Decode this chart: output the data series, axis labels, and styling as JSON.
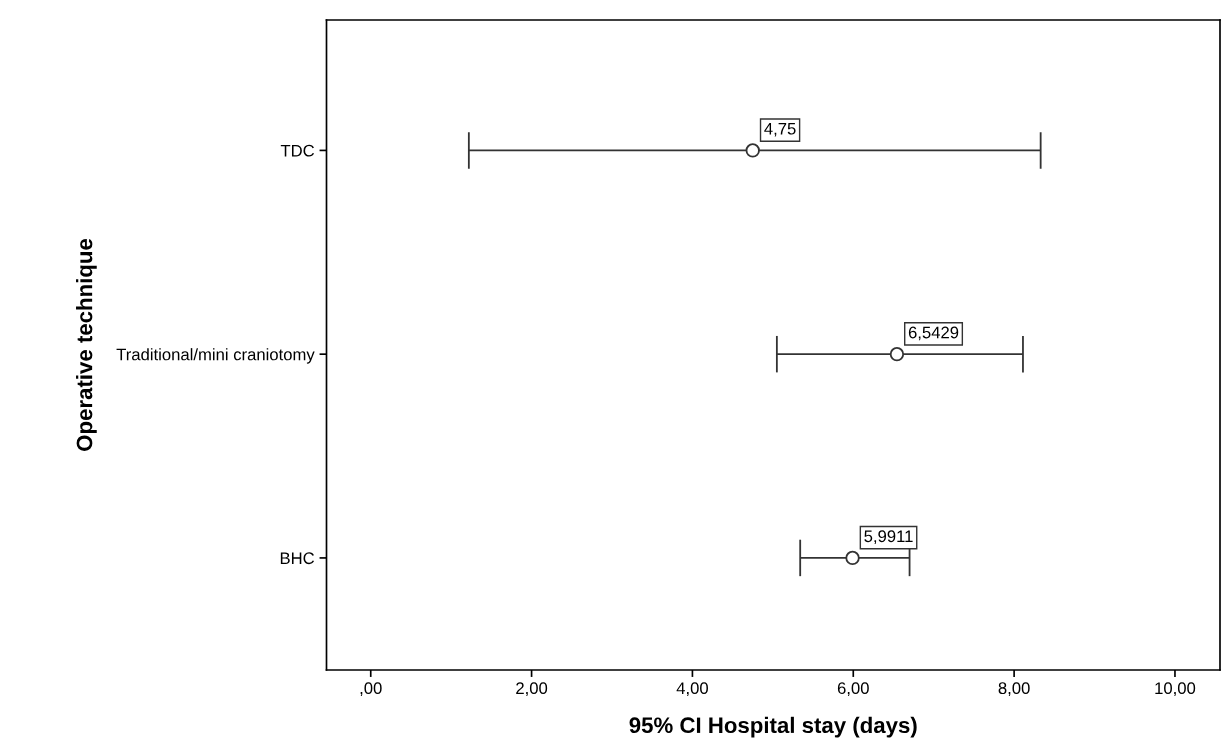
{
  "chart_data": {
    "type": "scatter",
    "orientation": "horizontal",
    "xlabel": "95% CI Hospital stay (days)",
    "ylabel": "Operative technique",
    "categories": [
      "TDC",
      "Traditional/mini craniotomy",
      "BHC"
    ],
    "values": [
      4.75,
      6.5429,
      5.9911
    ],
    "errors": [
      [
        1.22,
        8.33
      ],
      [
        5.05,
        8.11
      ],
      [
        5.34,
        6.7
      ]
    ],
    "value_labels": [
      "4,75",
      "6,5429",
      "5,9911"
    ],
    "color": "#333333",
    "marker": "circle",
    "grid": false,
    "legend": false,
    "xlim": [
      -0.55,
      10.56
    ],
    "xticks": [
      {
        "value": 0,
        "label": ",00"
      },
      {
        "value": 2,
        "label": "2,00"
      },
      {
        "value": 4,
        "label": "4,00"
      },
      {
        "value": 6,
        "label": "6,00"
      },
      {
        "value": 8,
        "label": "8,00"
      },
      {
        "value": 10,
        "label": "10,00"
      }
    ]
  }
}
